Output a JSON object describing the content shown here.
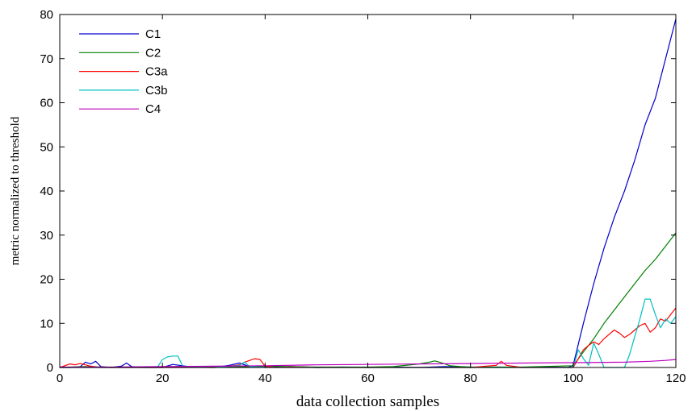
{
  "chart_data": {
    "type": "line",
    "title": "",
    "xlabel": "data collection samples",
    "ylabel": "metric normalized to threshold",
    "xlim": [
      0,
      120
    ],
    "ylim": [
      0,
      80
    ],
    "xticks": [
      0,
      20,
      40,
      60,
      80,
      100,
      120
    ],
    "yticks": [
      0,
      10,
      20,
      30,
      40,
      50,
      60,
      70,
      80
    ],
    "grid": false,
    "legend_position": "top-left",
    "series": [
      {
        "name": "C1",
        "color": "#0000cc",
        "x": [
          0,
          2,
          3,
          4,
          5,
          6,
          7,
          8,
          10,
          12,
          13,
          14,
          16,
          20,
          22,
          25,
          30,
          33,
          35,
          37,
          40,
          45,
          50,
          55,
          60,
          65,
          70,
          75,
          80,
          85,
          90,
          95,
          99,
          100,
          102,
          104,
          106,
          108,
          110,
          112,
          114,
          116,
          118,
          120
        ],
        "y": [
          0,
          0,
          0.1,
          0.2,
          1.2,
          0.8,
          1.4,
          0.2,
          0,
          0.3,
          1.0,
          0.2,
          0,
          0,
          0.7,
          0.2,
          0,
          0.5,
          1.0,
          0.2,
          0,
          0.2,
          0,
          0.1,
          0,
          0.1,
          0,
          0.2,
          0,
          0.1,
          0,
          0.1,
          0,
          0.5,
          10,
          19,
          27,
          34,
          40,
          47,
          55,
          61,
          70,
          79
        ]
      },
      {
        "name": "C2",
        "color": "#008000",
        "x": [
          0,
          5,
          10,
          20,
          30,
          40,
          50,
          60,
          65,
          70,
          72,
          73,
          74,
          76,
          78,
          80,
          90,
          100,
          102,
          104,
          106,
          108,
          110,
          112,
          114,
          116,
          118,
          120
        ],
        "y": [
          0,
          0.2,
          0,
          0.1,
          0,
          0.3,
          0.1,
          0.1,
          0.2,
          0.8,
          1.2,
          1.5,
          1.2,
          0.4,
          0.2,
          0.1,
          0.1,
          0.4,
          3.5,
          6.5,
          10,
          13,
          16,
          19,
          22,
          24.5,
          27.5,
          30.5
        ]
      },
      {
        "name": "C3a",
        "color": "#ff0000",
        "x": [
          0,
          2,
          3,
          4,
          6,
          8,
          10,
          20,
          30,
          33,
          35,
          36,
          37,
          38,
          39,
          40,
          42,
          45,
          50,
          60,
          70,
          80,
          85,
          86,
          87,
          90,
          100,
          101,
          102,
          103,
          104,
          105,
          106,
          107,
          108,
          109,
          110,
          111,
          112,
          113,
          114,
          115,
          116,
          117,
          118,
          119,
          120
        ],
        "y": [
          0,
          0.8,
          0.6,
          0.9,
          0.3,
          0,
          0,
          0,
          0,
          0.3,
          0.6,
          1.2,
          1.6,
          2.0,
          1.8,
          0.3,
          0,
          0.1,
          0,
          0,
          0,
          0,
          0.5,
          1.4,
          0.5,
          0,
          0,
          2,
          4,
          5,
          5.8,
          5.2,
          6.5,
          7.5,
          8.5,
          7.8,
          6.8,
          7.5,
          8.5,
          9.5,
          10,
          8,
          9,
          11,
          10.5,
          12,
          13.5
        ]
      },
      {
        "name": "C3b",
        "color": "#00bfbf",
        "x": [
          0,
          10,
          19,
          20,
          21,
          22,
          23,
          24,
          30,
          35,
          36,
          37,
          40,
          50,
          60,
          70,
          80,
          90,
          100,
          101,
          102,
          103,
          104,
          105,
          106,
          108,
          110,
          111,
          112,
          113,
          114,
          115,
          116,
          117,
          118,
          119,
          120
        ],
        "y": [
          0,
          0,
          0,
          1.8,
          2.4,
          2.6,
          2.6,
          0.2,
          0,
          0.5,
          1.2,
          0.2,
          0,
          0,
          0,
          0,
          0,
          0,
          0,
          4,
          2,
          0.5,
          5.5,
          3,
          0,
          0,
          0,
          3,
          7,
          11,
          15.5,
          15.5,
          12,
          9,
          11,
          10,
          11.5
        ]
      },
      {
        "name": "C4",
        "color": "#bf00bf",
        "x": [
          0,
          10,
          20,
          30,
          40,
          50,
          60,
          70,
          80,
          90,
          100,
          110,
          115,
          118,
          120
        ],
        "y": [
          0.1,
          0.1,
          0.2,
          0.3,
          0.4,
          0.6,
          0.7,
          0.8,
          0.9,
          1.0,
          1.1,
          1.2,
          1.4,
          1.6,
          1.8
        ]
      }
    ]
  }
}
